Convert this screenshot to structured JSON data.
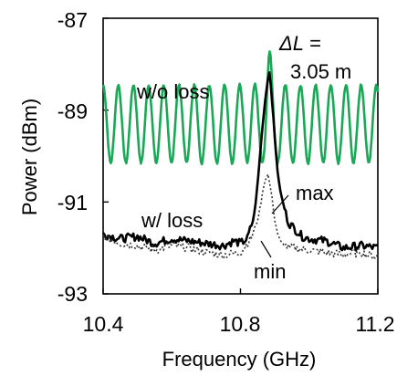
{
  "chart_data": {
    "type": "line",
    "xlabel": "Frequency (GHz)",
    "ylabel": "Power (dBm)",
    "xlim": [
      10.4,
      11.2
    ],
    "ylim": [
      -93,
      -87
    ],
    "xticks": [
      "10.4",
      "10.8",
      "11.2"
    ],
    "yticks": [
      "-87",
      "-89",
      "-91",
      "-93"
    ],
    "grid": false,
    "legend": "none",
    "annotations": {
      "delta_l_symbol": "ΔL",
      "delta_l_eq": " =",
      "delta_l_value": "3.05 m",
      "wo_loss": "w/o loss",
      "w_loss": "w/ loss",
      "max": "max",
      "min": "min"
    },
    "series": [
      {
        "name": "w/o loss",
        "color": "#1aa857",
        "style": "solid",
        "ripple": {
          "period_ghz": 0.0442,
          "center_dbm": -89.3,
          "half_swing_db": 0.85
        },
        "peak": {
          "x": 10.884,
          "y": -87.7
        }
      },
      {
        "name": "w/ loss (max)",
        "color": "#000000",
        "style": "solid",
        "x": [
          10.4,
          10.45,
          10.5,
          10.55,
          10.6,
          10.65,
          10.7,
          10.75,
          10.78,
          10.8,
          10.82,
          10.84,
          10.85,
          10.86,
          10.87,
          10.88,
          10.885,
          10.89,
          10.9,
          10.91,
          10.92,
          10.93,
          10.94,
          10.96,
          10.98,
          11.0,
          11.05,
          11.1,
          11.15,
          11.2
        ],
        "y": [
          -91.7,
          -91.8,
          -91.75,
          -91.9,
          -91.8,
          -91.85,
          -91.9,
          -91.95,
          -91.85,
          -91.9,
          -91.8,
          -91.3,
          -90.6,
          -89.7,
          -88.9,
          -88.3,
          -88.15,
          -88.6,
          -89.6,
          -90.5,
          -90.9,
          -91.2,
          -91.45,
          -91.6,
          -91.75,
          -91.8,
          -91.85,
          -92.0,
          -91.95,
          -92.0
        ]
      },
      {
        "name": "w/ loss (min)",
        "color": "#333333",
        "style": "dotted",
        "x": [
          10.4,
          10.45,
          10.5,
          10.55,
          10.6,
          10.65,
          10.7,
          10.75,
          10.8,
          10.83,
          10.85,
          10.86,
          10.87,
          10.88,
          10.89,
          10.9,
          10.91,
          10.92,
          10.94,
          10.96,
          11.0,
          11.05,
          11.1,
          11.15,
          11.2
        ],
        "y": [
          -91.75,
          -91.9,
          -91.95,
          -92.05,
          -91.95,
          -92.0,
          -92.1,
          -92.15,
          -92.1,
          -91.8,
          -91.4,
          -91.0,
          -90.55,
          -90.4,
          -90.8,
          -91.4,
          -91.75,
          -91.9,
          -92.0,
          -92.0,
          -92.05,
          -92.1,
          -92.15,
          -92.1,
          -92.2
        ]
      }
    ]
  }
}
